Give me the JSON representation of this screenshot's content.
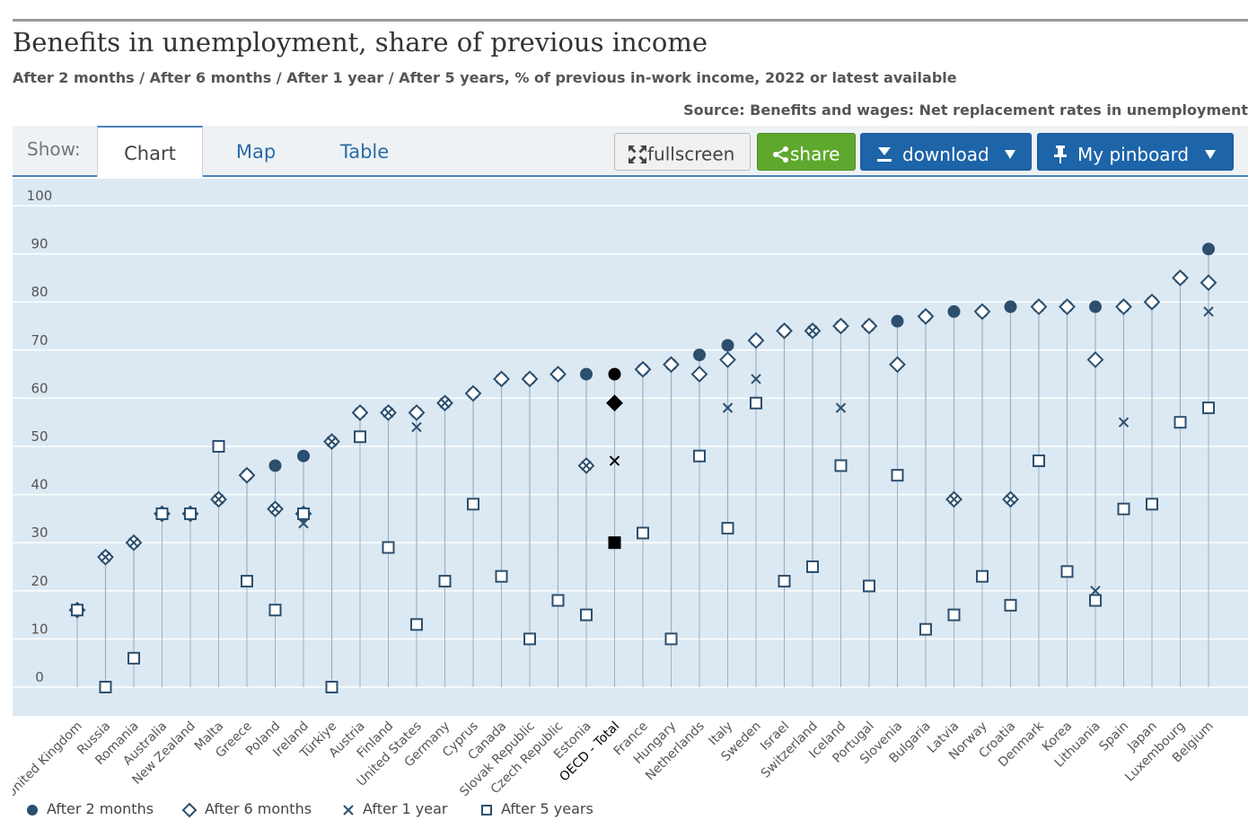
{
  "header": {
    "title": "Benefits in unemployment, share of previous income",
    "subtitle": "After 2 months / After 6 months / After 1 year / After 5 years, % of previous in-work income, 2022 or latest available",
    "source": "Source: Benefits and wages: Net replacement rates in unemployment"
  },
  "toolbar": {
    "show_label": "Show:",
    "tabs": [
      "Chart",
      "Map",
      "Table"
    ],
    "fullscreen_label": "fullscreen",
    "share_label": "share",
    "download_label": "download",
    "pinboard_label": "My pinboard"
  },
  "colors": {
    "plot_background": "#dce9f3",
    "marker": "#2c4f6e",
    "highlight": "#000000",
    "gridline": "#ffffff",
    "stem": "#9fb0bf",
    "share_button": "#5fa82e",
    "action_button": "#1d64a8"
  },
  "chart_data": {
    "type": "scatter",
    "title": "Benefits in unemployment, share of previous income",
    "ylim": [
      0,
      100
    ],
    "yticks": [
      0,
      10,
      20,
      30,
      40,
      50,
      60,
      70,
      80,
      90,
      100
    ],
    "grid": true,
    "legend_position": "bottom-left",
    "highlight_category": "OECD - Total",
    "categories": [
      "United Kingdom",
      "Russia",
      "Romania",
      "Australia",
      "New Zealand",
      "Malta",
      "Greece",
      "Poland",
      "Ireland",
      "Türkiye",
      "Austria",
      "Finland",
      "United States",
      "Germany",
      "Cyprus",
      "Canada",
      "Slovak Republic",
      "Czech Republic",
      "Estonia",
      "OECD - Total",
      "France",
      "Hungary",
      "Netherlands",
      "Italy",
      "Sweden",
      "Israel",
      "Switzerland",
      "Iceland",
      "Portugal",
      "Slovenia",
      "Bulgaria",
      "Latvia",
      "Norway",
      "Croatia",
      "Denmark",
      "Korea",
      "Lithuania",
      "Spain",
      "Japan",
      "Luxembourg",
      "Belgium"
    ],
    "series": [
      {
        "name": "After 2 months",
        "marker": "circle",
        "values": [
          16,
          27,
          30,
          36,
          36,
          39,
          44,
          46,
          48,
          51,
          57,
          57,
          57,
          59,
          61,
          64,
          64,
          65,
          65,
          65,
          66,
          67,
          69,
          71,
          72,
          74,
          74,
          75,
          75,
          76,
          77,
          78,
          78,
          79,
          79,
          79,
          79,
          79,
          80,
          85,
          91
        ]
      },
      {
        "name": "After 6 months",
        "marker": "diamond",
        "values": [
          16,
          27,
          30,
          36,
          36,
          39,
          44,
          37,
          36,
          51,
          57,
          57,
          57,
          59,
          61,
          64,
          64,
          65,
          46,
          59,
          66,
          67,
          65,
          68,
          72,
          74,
          74,
          75,
          75,
          67,
          77,
          39,
          78,
          39,
          79,
          79,
          68,
          79,
          80,
          85,
          84
        ]
      },
      {
        "name": "After 1 year",
        "marker": "x",
        "values": [
          16,
          27,
          30,
          36,
          36,
          39,
          22,
          37,
          34,
          51,
          52,
          57,
          54,
          59,
          38,
          23,
          10,
          18,
          46,
          47,
          32,
          10,
          48,
          58,
          64,
          22,
          74,
          58,
          21,
          44,
          12,
          39,
          23,
          39,
          47,
          24,
          20,
          55,
          38,
          55,
          78
        ]
      },
      {
        "name": "After 5 years",
        "marker": "square",
        "values": [
          16,
          0,
          6,
          36,
          36,
          50,
          22,
          16,
          36,
          0,
          52,
          29,
          13,
          22,
          38,
          23,
          10,
          18,
          15,
          30,
          32,
          10,
          48,
          33,
          59,
          22,
          25,
          46,
          21,
          44,
          12,
          15,
          23,
          17,
          47,
          24,
          18,
          37,
          38,
          55,
          58
        ]
      }
    ]
  }
}
